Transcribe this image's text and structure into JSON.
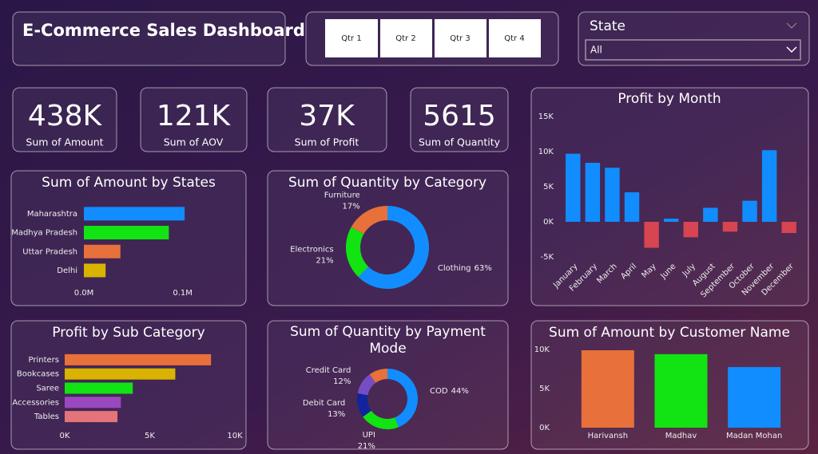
{
  "header": {
    "title": "E-Commerce Sales Dashboard"
  },
  "quarter_buttons": [
    "Qtr 1",
    "Qtr 2",
    "Qtr 3",
    "Qtr 4"
  ],
  "state_slicer": {
    "title": "State",
    "selected": "All"
  },
  "cards": [
    {
      "value": "438K",
      "label": "Sum of Amount"
    },
    {
      "value": "121K",
      "label": "Sum of AOV"
    },
    {
      "value": "37K",
      "label": "Sum of Profit"
    },
    {
      "value": "5615",
      "label": "Sum of Quantity"
    }
  ],
  "chart_data": [
    {
      "type": "hbar",
      "title": "Sum of Amount by States",
      "categories": [
        "Maharashtra",
        "Madhya Pradesh",
        "Uttar Pradesh",
        "Delhi"
      ],
      "values": [
        102000,
        86000,
        37000,
        22000
      ],
      "colors": [
        "#118DFF",
        "#12E312",
        "#E8703A",
        "#D9B300"
      ],
      "xlim": [
        0,
        110000
      ],
      "xticks": [
        {
          "value": 0,
          "label": "0.0M"
        },
        {
          "value": 100000,
          "label": "0.1M"
        }
      ]
    },
    {
      "type": "donut",
      "title": "Sum of Quantity by Category",
      "categories": [
        "Clothing",
        "Electronics",
        "Furniture"
      ],
      "values": [
        63,
        21,
        17
      ],
      "value_labels": [
        "63%",
        "21%",
        "17%"
      ],
      "colors": [
        "#118DFF",
        "#12E312",
        "#E8703A"
      ]
    },
    {
      "type": "bar",
      "title": "Profit by Month",
      "categories": [
        "January",
        "February",
        "March",
        "April",
        "May",
        "June",
        "July",
        "August",
        "September",
        "October",
        "November",
        "December"
      ],
      "values": [
        9700,
        8400,
        7700,
        4200,
        -3700,
        450,
        -2200,
        2000,
        -1400,
        3000,
        10200,
        -1600
      ],
      "color": "#118DFF",
      "negative_color": "#D64550",
      "ylim": [
        -5000,
        15000
      ],
      "yticks": [
        {
          "value": -5000,
          "label": "-5K"
        },
        {
          "value": 0,
          "label": "0K"
        },
        {
          "value": 5000,
          "label": "5K"
        },
        {
          "value": 10000,
          "label": "10K"
        },
        {
          "value": 15000,
          "label": "15K"
        }
      ]
    },
    {
      "type": "hbar",
      "title": "Profit by Sub Category",
      "categories": [
        "Printers",
        "Bookcases",
        "Saree",
        "Accessories",
        "Tables"
      ],
      "values": [
        8600,
        6500,
        4000,
        3300,
        3100
      ],
      "colors": [
        "#E8703A",
        "#D9B300",
        "#12E312",
        "#9A48C0",
        "#E4747A"
      ],
      "xlim": [
        0,
        10000
      ],
      "xticks": [
        {
          "value": 0,
          "label": "0K"
        },
        {
          "value": 5000,
          "label": "5K"
        },
        {
          "value": 10000,
          "label": "10K"
        }
      ]
    },
    {
      "type": "donut",
      "title": "Sum of Quantity by Payment Mode",
      "categories": [
        "COD",
        "UPI",
        "Debit Card",
        "Credit Card",
        null
      ],
      "values": [
        44,
        21,
        13,
        12,
        10
      ],
      "value_labels": [
        "44%",
        "21%",
        "13%",
        "12%",
        null
      ],
      "colors": [
        "#118DFF",
        "#12E312",
        "#12239E",
        "#744EC2",
        "#E8703A"
      ]
    },
    {
      "type": "bar",
      "title": "Sum of Amount by Customer Name",
      "categories": [
        "Harivansh",
        "Madhav",
        "Madan Mohan"
      ],
      "values": [
        9900,
        9400,
        7750
      ],
      "colors": [
        "#E8703A",
        "#12E312",
        "#118DFF"
      ],
      "ylim": [
        0,
        10000
      ],
      "yticks": [
        {
          "value": 0,
          "label": "0K"
        },
        {
          "value": 5000,
          "label": "5K"
        },
        {
          "value": 10000,
          "label": "10K"
        }
      ]
    }
  ]
}
